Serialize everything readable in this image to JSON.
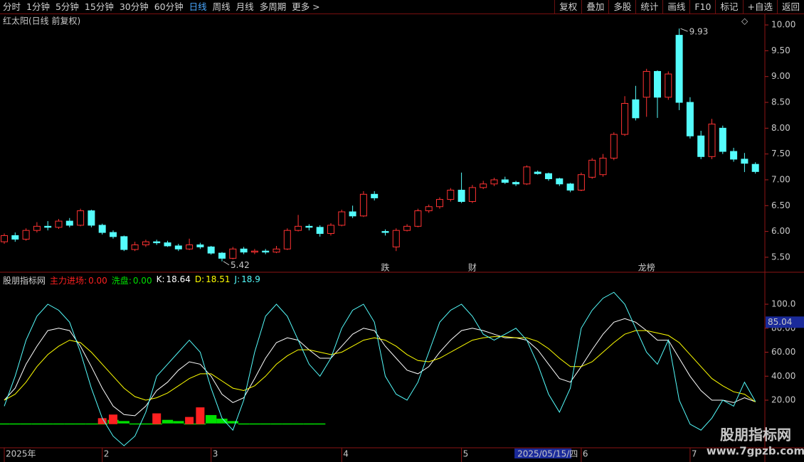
{
  "toolbar": {
    "left": [
      "分时",
      "1分钟",
      "5分钟",
      "15分钟",
      "30分钟",
      "60分钟",
      "日线",
      "周线",
      "月线",
      "多周期",
      "更多 >"
    ],
    "right": [
      "复权",
      "叠加",
      "多股",
      "统计",
      "画线",
      "F10",
      "标记",
      "+自选",
      "返回"
    ]
  },
  "chart_data": [
    {
      "type": "candlestick",
      "title": "红太阳(日线 前复权)",
      "categories": [
        "2025年",
        null,
        null,
        null,
        null,
        null,
        null,
        null,
        null,
        "2",
        null,
        null,
        null,
        null,
        null,
        null,
        null,
        null,
        null,
        "3",
        null,
        null,
        null,
        null,
        null,
        null,
        null,
        null,
        null,
        null,
        null,
        "4",
        null,
        null,
        null,
        null,
        null,
        null,
        null,
        null,
        null,
        null,
        "5",
        null,
        null,
        null,
        null,
        "2025/05/15/四",
        null,
        null,
        null,
        null,
        null,
        "6",
        null,
        null,
        null,
        null,
        null,
        null,
        null,
        null,
        null,
        "7",
        null,
        null,
        null,
        null,
        null,
        null
      ],
      "open": [
        5.8,
        5.92,
        5.85,
        6.02,
        6.1,
        6.08,
        6.2,
        6.12,
        6.4,
        6.12,
        5.98,
        5.9,
        5.65,
        5.74,
        5.8,
        5.78,
        5.72,
        5.66,
        5.74,
        5.7,
        5.58,
        5.48,
        5.66,
        5.6,
        5.62,
        5.6,
        5.66,
        6.02,
        6.1,
        6.08,
        5.96,
        6.12,
        6.38,
        6.3,
        6.72,
        6.0,
        5.7,
        6.02,
        6.1,
        6.4,
        6.48,
        6.62,
        6.8,
        6.58,
        6.85,
        6.92,
        7.0,
        6.95,
        6.92,
        7.15,
        7.12,
        7.02,
        6.92,
        6.8,
        7.05,
        7.1,
        7.42,
        7.88,
        8.55,
        8.6,
        9.1,
        8.6,
        9.8,
        8.5,
        7.85,
        7.45,
        8.0,
        7.55,
        7.4,
        7.3
      ],
      "high": [
        5.96,
        5.98,
        6.06,
        6.18,
        6.2,
        6.24,
        6.26,
        6.44,
        6.42,
        6.15,
        6.02,
        5.92,
        5.8,
        5.84,
        5.84,
        5.82,
        5.76,
        5.86,
        5.78,
        5.72,
        5.6,
        5.7,
        5.7,
        5.66,
        5.66,
        5.72,
        6.06,
        6.32,
        6.14,
        6.12,
        6.16,
        6.42,
        6.5,
        6.78,
        6.78,
        6.04,
        6.06,
        6.14,
        6.44,
        6.52,
        6.66,
        6.84,
        7.14,
        6.9,
        6.98,
        7.04,
        7.06,
        6.98,
        7.28,
        7.18,
        7.14,
        7.04,
        6.94,
        7.14,
        7.42,
        7.5,
        7.92,
        8.62,
        8.82,
        9.15,
        9.12,
        9.1,
        9.93,
        8.6,
        7.95,
        8.18,
        8.05,
        7.62,
        7.52,
        7.34
      ],
      "low": [
        5.76,
        5.8,
        5.82,
        5.98,
        6.02,
        6.05,
        6.08,
        6.1,
        6.08,
        5.94,
        5.86,
        5.62,
        5.62,
        5.7,
        5.74,
        5.7,
        5.62,
        5.64,
        5.66,
        5.55,
        5.42,
        5.46,
        5.56,
        5.56,
        5.56,
        5.58,
        5.64,
        6.0,
        6.02,
        5.9,
        5.92,
        6.1,
        6.26,
        6.28,
        6.6,
        5.92,
        5.62,
        6.0,
        6.08,
        6.36,
        6.44,
        6.58,
        6.55,
        6.55,
        6.82,
        6.88,
        6.92,
        6.88,
        6.9,
        7.1,
        6.98,
        6.88,
        6.76,
        6.78,
        7.02,
        7.06,
        7.38,
        7.85,
        8.15,
        8.22,
        8.2,
        8.55,
        8.35,
        7.8,
        7.4,
        7.4,
        7.5,
        7.35,
        7.15,
        7.12
      ],
      "close": [
        5.92,
        5.85,
        6.02,
        6.1,
        6.08,
        6.2,
        6.12,
        6.4,
        6.12,
        5.98,
        5.9,
        5.65,
        5.74,
        5.8,
        5.78,
        5.72,
        5.66,
        5.74,
        5.7,
        5.58,
        5.48,
        5.66,
        5.6,
        5.62,
        5.6,
        5.66,
        6.02,
        6.1,
        6.08,
        5.96,
        6.12,
        6.38,
        6.3,
        6.72,
        6.65,
        5.98,
        6.02,
        6.1,
        6.4,
        6.48,
        6.62,
        6.8,
        6.58,
        6.85,
        6.92,
        7.0,
        6.95,
        6.92,
        7.25,
        7.12,
        7.02,
        6.92,
        6.8,
        7.1,
        7.38,
        7.42,
        7.88,
        8.48,
        8.2,
        9.1,
        8.6,
        9.05,
        8.5,
        7.85,
        7.45,
        8.08,
        7.55,
        7.4,
        7.32,
        7.16
      ],
      "up_color": "#ff3232",
      "down_color": "#54fcfc",
      "ylim": [
        5.21,
        10.18
      ],
      "yticks": [
        {
          "value": 5.5,
          "label": "5.50"
        },
        {
          "value": 6,
          "label": "6.00"
        },
        {
          "value": 6.5,
          "label": "6.50"
        },
        {
          "value": 7,
          "label": "7.00"
        },
        {
          "value": 7.5,
          "label": "7.50"
        },
        {
          "value": 8,
          "label": "8.00"
        },
        {
          "value": 8.5,
          "label": "8.50"
        },
        {
          "value": 9,
          "label": "9.00"
        },
        {
          "value": 9.5,
          "label": "9.50"
        },
        {
          "value": 10,
          "label": "10.00"
        }
      ],
      "events": [
        null,
        null,
        null,
        null,
        null,
        null,
        null,
        null,
        null,
        null,
        null,
        null,
        null,
        null,
        null,
        null,
        null,
        null,
        null,
        null,
        null,
        null,
        null,
        null,
        null,
        null,
        null,
        null,
        null,
        null,
        null,
        null,
        null,
        null,
        null,
        {
          "label": "跌",
          "color": "#33dd33"
        },
        null,
        null,
        null,
        null,
        null,
        null,
        null,
        {
          "label": "财",
          "color": "#66bbff"
        },
        null,
        null,
        null,
        null,
        null,
        null,
        null,
        null,
        null,
        null,
        null,
        null,
        null,
        null,
        null,
        {
          "label": "龙榜",
          "color": "#ff9090"
        },
        null,
        null,
        null,
        null,
        null,
        null,
        null,
        null,
        null,
        null
      ]
    },
    {
      "type": "line",
      "title": "股朋指标网",
      "legend_separator": ":",
      "series": [
        {
          "name": "主力进场",
          "color": "#ff2020",
          "kind": "bar",
          "last_label": "0.00",
          "values": [
            0,
            0,
            0,
            0,
            0,
            0,
            0,
            0,
            0,
            5,
            8,
            0,
            0,
            0,
            9,
            0,
            0,
            6,
            14,
            0,
            0,
            0,
            0,
            0,
            0,
            0,
            0,
            0,
            0,
            0,
            0,
            0,
            0,
            0,
            0,
            0,
            0,
            0,
            0,
            0,
            0,
            0,
            0,
            0,
            0,
            0,
            0,
            0,
            0,
            0,
            0,
            0,
            0,
            0,
            0,
            0,
            0,
            0,
            0,
            0,
            0,
            0,
            0,
            0,
            0,
            0,
            0,
            0,
            0,
            0
          ]
        },
        {
          "name": "洗盘",
          "color": "#00e000",
          "kind": "bar",
          "last_label": "0.00",
          "values": [
            0,
            0,
            0,
            0,
            0,
            0,
            0,
            0,
            0,
            0,
            3,
            2,
            0,
            0,
            0,
            3,
            2,
            0,
            0,
            7,
            4,
            2,
            0,
            0,
            0,
            0,
            0,
            0,
            0,
            0,
            null,
            null,
            null,
            null,
            null,
            null,
            null,
            null,
            null,
            null,
            null,
            null,
            null,
            null,
            null,
            null,
            null,
            null,
            null,
            null,
            null,
            null,
            null,
            null,
            null,
            null,
            null,
            null,
            null,
            null,
            null,
            null,
            null,
            null,
            null,
            null,
            null,
            null,
            null,
            null
          ]
        },
        {
          "name": "K",
          "color": "#ffffff",
          "values": [
            20,
            30,
            50,
            65,
            78,
            80,
            78,
            65,
            48,
            30,
            15,
            8,
            7,
            15,
            28,
            35,
            45,
            52,
            50,
            40,
            25,
            18,
            22,
            38,
            55,
            68,
            72,
            70,
            62,
            55,
            55,
            65,
            75,
            80,
            78,
            65,
            55,
            45,
            42,
            48,
            60,
            70,
            78,
            80,
            78,
            75,
            72,
            72,
            70,
            62,
            50,
            38,
            35,
            48,
            62,
            75,
            85,
            88,
            85,
            78,
            70,
            70,
            55,
            40,
            28,
            20,
            20,
            18,
            22,
            18.64
          ]
        },
        {
          "name": "D",
          "color": "#ffff00",
          "values": [
            20,
            25,
            35,
            48,
            58,
            65,
            70,
            68,
            60,
            50,
            40,
            30,
            23,
            20,
            22,
            26,
            32,
            38,
            42,
            42,
            36,
            30,
            28,
            32,
            40,
            50,
            57,
            62,
            62,
            60,
            58,
            60,
            65,
            70,
            72,
            70,
            65,
            58,
            53,
            52,
            55,
            60,
            65,
            70,
            72,
            73,
            73,
            72,
            72,
            69,
            63,
            55,
            48,
            48,
            52,
            60,
            68,
            75,
            78,
            78,
            76,
            74,
            68,
            58,
            48,
            38,
            32,
            27,
            25,
            18.51
          ]
        },
        {
          "name": "J",
          "color": "#54fcfc",
          "values": [
            15,
            40,
            70,
            90,
            100,
            95,
            85,
            60,
            30,
            5,
            -10,
            -18,
            -10,
            10,
            40,
            50,
            60,
            70,
            60,
            30,
            5,
            -5,
            20,
            60,
            90,
            100,
            90,
            70,
            50,
            40,
            55,
            80,
            95,
            100,
            85,
            40,
            25,
            20,
            35,
            60,
            85,
            95,
            100,
            90,
            75,
            70,
            75,
            80,
            70,
            50,
            25,
            10,
            30,
            80,
            95,
            105,
            110,
            100,
            80,
            60,
            50,
            70,
            20,
            0,
            -5,
            5,
            20,
            15,
            35,
            18.9
          ]
        }
      ],
      "ylim": [
        -19.7,
        125.5
      ],
      "yticks": [
        {
          "value": 20,
          "label": "20.00"
        },
        {
          "value": 40,
          "label": "40.00"
        },
        {
          "value": 60,
          "label": "60.00"
        },
        {
          "value": 80,
          "label": "80.00"
        },
        {
          "value": 100,
          "label": "100.0"
        }
      ],
      "cursor": 85.04
    }
  ],
  "watermark": {
    "title": "股朋指标网",
    "url": "www.7gpzb.com"
  }
}
